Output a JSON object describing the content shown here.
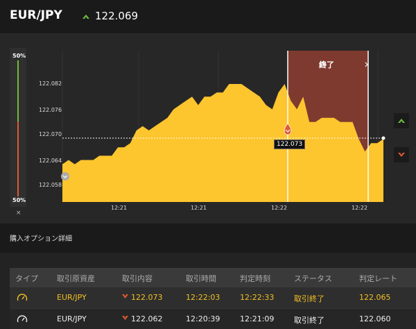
{
  "header": {
    "pair": "EUR/JPY",
    "price": "122.069",
    "trend_icon": "up-arrow-icon"
  },
  "gauge": {
    "top_pct": "50%",
    "bottom_pct": "50%",
    "close_symbol": "×"
  },
  "chart_data": {
    "type": "area",
    "y_ticks": [
      "122.082",
      "122.076",
      "122.070",
      "122.064",
      "122.058"
    ],
    "x_ticks": [
      "12:21",
      "12:21",
      "12:22",
      "12:22"
    ],
    "series": [
      {
        "values": [
          122.063,
          122.064,
          122.063,
          122.064,
          122.064,
          122.064,
          122.065,
          122.065,
          122.065,
          122.067,
          122.067,
          122.068,
          122.071,
          122.072,
          122.071,
          122.072,
          122.073,
          122.074,
          122.076,
          122.077,
          122.078,
          122.079,
          122.077,
          122.079,
          122.079,
          122.08,
          122.08,
          122.082,
          122.082,
          122.082,
          122.081,
          122.08,
          122.079,
          122.077,
          122.076,
          122.08,
          122.082,
          122.078,
          122.076,
          122.079,
          122.073,
          122.073,
          122.074,
          122.074,
          122.074,
          122.073,
          122.073,
          122.073,
          122.069,
          122.066,
          122.068,
          122.068,
          122.069
        ]
      }
    ],
    "current_rate": "122.073",
    "expired_label": "終了",
    "colors": {
      "fill": "#fdc52e",
      "expired": "#7e3a2f",
      "entry": "#e05a32"
    }
  },
  "details": {
    "title": "購入オプション詳細"
  },
  "table": {
    "headers": [
      "タイプ",
      "取引原資産",
      "取引内容",
      "取引時間",
      "判定時刻",
      "ステータス",
      "判定レート"
    ],
    "rows": [
      {
        "asset": "EUR/JPY",
        "content": "122.073",
        "time": "12:22:03",
        "judge_time": "12:22:33",
        "status": "取引終了",
        "rate": "122.065"
      },
      {
        "asset": "EUR/JPY",
        "content": "122.062",
        "time": "12:20:39",
        "judge_time": "12:21:09",
        "status": "取引終了",
        "rate": "122.060"
      }
    ]
  }
}
